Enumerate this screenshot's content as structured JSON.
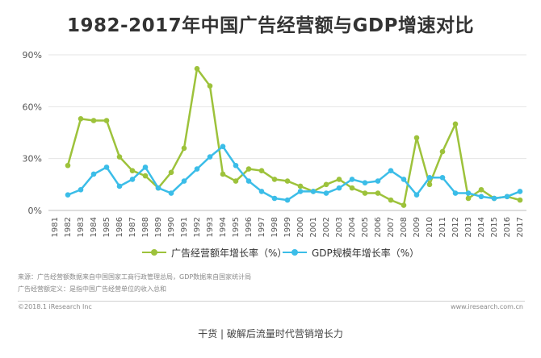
{
  "colors": {
    "ad": "#9dc23b",
    "gdp": "#3bbde8",
    "grid": "#e4e4e4"
  },
  "notes": {
    "source": "来源：广告经营额数据来自中国国家工商行政管理总局，GDP数据来自国家统计局",
    "definition": "广告经营额定义：是指中国广告经营单位的收入总和"
  },
  "footer": {
    "copyright": "©2018.1 iResearch Inc",
    "website": "www.iresearch.com.cn"
  },
  "caption": "干货 | 破解后流量时代营销增长力",
  "chart_data": {
    "type": "line",
    "title": "1982-2017年中国广告经营额与GDP增速对比",
    "categories": [
      "1981",
      "1982",
      "1983",
      "1984",
      "1985",
      "1986",
      "1987",
      "1988",
      "1989",
      "1990",
      "1991",
      "1992",
      "1993",
      "1994",
      "1995",
      "1996",
      "1997",
      "1998",
      "1999",
      "2000",
      "2001",
      "2002",
      "2003",
      "2004",
      "2005",
      "2006",
      "2007",
      "2008",
      "2009",
      "2010",
      "2011",
      "2012",
      "2013",
      "2014",
      "2015",
      "2016",
      "2017"
    ],
    "series": [
      {
        "name": "广告经营额年增长率（%）",
        "values": [
          null,
          26,
          53,
          52,
          52,
          31,
          23,
          20,
          13,
          22,
          36,
          82,
          72,
          21,
          17,
          24,
          23,
          18,
          17,
          14,
          11,
          15,
          18,
          13,
          10,
          10,
          6,
          3,
          42,
          15,
          34,
          50,
          7,
          12,
          7,
          8,
          6
        ]
      },
      {
        "name": "GDP规模年增长率（%）",
        "values": [
          null,
          9,
          12,
          21,
          25,
          14,
          18,
          25,
          13,
          10,
          17,
          24,
          31,
          37,
          26,
          17,
          11,
          7,
          6,
          11,
          11,
          10,
          13,
          18,
          16,
          17,
          23,
          18,
          9,
          19,
          19,
          10,
          10,
          8,
          7,
          8,
          11
        ]
      }
    ],
    "yticks": [
      "0%",
      "30%",
      "60%",
      "90%"
    ],
    "ylim": [
      0,
      90
    ],
    "grid": true,
    "legend": "bottom"
  }
}
